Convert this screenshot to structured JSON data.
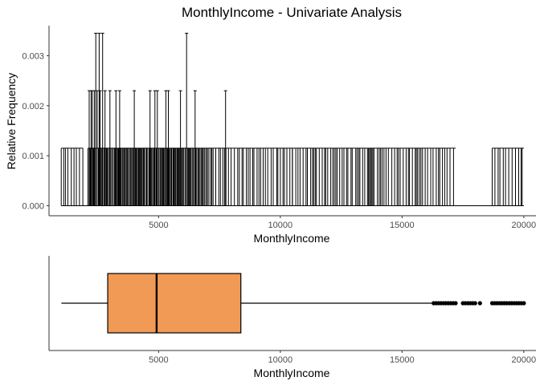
{
  "title": "MonthlyIncome - Univariate Analysis",
  "colors": {
    "box_fill": "#F19A55",
    "line": "#000000",
    "axis": "#333333"
  },
  "chart_data": [
    {
      "type": "bar",
      "subtype": "histogram",
      "xlabel": "MonthlyIncome",
      "ylabel": "Relative Frequency",
      "xlim": [
        500,
        20500
      ],
      "ylim": [
        -0.0002,
        0.0036
      ],
      "x_ticks": [
        5000,
        10000,
        15000,
        20000
      ],
      "x_tick_labels": [
        "5000",
        "10000",
        "15000",
        "20000"
      ],
      "y_ticks": [
        0,
        0.001,
        0.002,
        0.003
      ],
      "y_tick_labels": [
        "0.000",
        "0.001",
        "0.002",
        "0.003"
      ],
      "grid": false,
      "regions": [
        {
          "from": 1000,
          "to": 1900,
          "value": 0.00115
        },
        {
          "from": 2100,
          "to": 7000,
          "value": 0.00115
        },
        {
          "from": 7000,
          "to": 10500,
          "value": 0.00115
        },
        {
          "from": 10500,
          "to": 13800,
          "value": 0.00115
        },
        {
          "from": 13800,
          "to": 17200,
          "value": 0.00115
        },
        {
          "from": 18700,
          "to": 20000,
          "value": 0.00115
        }
      ],
      "tall_bars": [
        {
          "x": 2150,
          "value": 0.0023
        },
        {
          "x": 2230,
          "value": 0.0023
        },
        {
          "x": 2280,
          "value": 0.0023
        },
        {
          "x": 2360,
          "value": 0.0023
        },
        {
          "x": 2420,
          "value": 0.00345
        },
        {
          "x": 2480,
          "value": 0.0023
        },
        {
          "x": 2560,
          "value": 0.00345
        },
        {
          "x": 2600,
          "value": 0.0023
        },
        {
          "x": 2700,
          "value": 0.00345
        },
        {
          "x": 2800,
          "value": 0.0023
        },
        {
          "x": 3000,
          "value": 0.0023
        },
        {
          "x": 3250,
          "value": 0.0023
        },
        {
          "x": 3400,
          "value": 0.0023
        },
        {
          "x": 4000,
          "value": 0.0023
        },
        {
          "x": 4650,
          "value": 0.0023
        },
        {
          "x": 4850,
          "value": 0.0023
        },
        {
          "x": 4950,
          "value": 0.0023
        },
        {
          "x": 5300,
          "value": 0.0023
        },
        {
          "x": 5400,
          "value": 0.0023
        },
        {
          "x": 5900,
          "value": 0.0023
        },
        {
          "x": 6150,
          "value": 0.00345
        },
        {
          "x": 6500,
          "value": 0.0023
        },
        {
          "x": 7750,
          "value": 0.0023
        }
      ]
    },
    {
      "type": "boxplot",
      "xlabel": "MonthlyIncome",
      "xlim": [
        500,
        20500
      ],
      "x_ticks": [
        5000,
        10000,
        15000,
        20000
      ],
      "x_tick_labels": [
        "5000",
        "10000",
        "15000",
        "20000"
      ],
      "whisker_low": 1009,
      "q1": 2911,
      "median": 4919,
      "q3": 8379,
      "whisker_high": 16300,
      "outliers": [
        16300,
        16400,
        16500,
        16600,
        16700,
        16800,
        16900,
        17000,
        17100,
        17200,
        17500,
        17600,
        17700,
        17800,
        17900,
        18000,
        18200,
        18700,
        18800,
        18900,
        19000,
        19100,
        19200,
        19300,
        19400,
        19500,
        19600,
        19700,
        19800,
        19900,
        20000
      ]
    }
  ]
}
